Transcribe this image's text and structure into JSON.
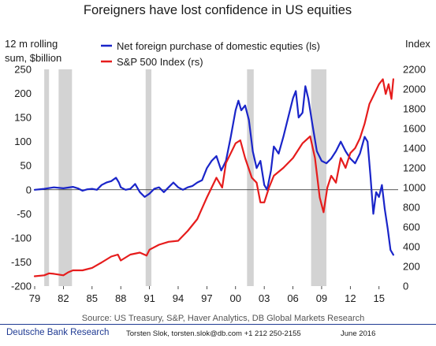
{
  "chart_data": {
    "type": "line",
    "title": "Foreigners have lost confidence in US equities",
    "ylabel_left": [
      "12 m rolling",
      "sum, $billion"
    ],
    "ylabel_right": "Index",
    "ylim_left": [
      -200,
      250
    ],
    "ylim_right": [
      0,
      2200
    ],
    "xlim": [
      1979,
      2017
    ],
    "x_ticks": [
      1979,
      1982,
      1985,
      1988,
      1991,
      1994,
      1997,
      2000,
      2003,
      2006,
      2009,
      2012,
      2015
    ],
    "x_tick_labels": [
      "79",
      "82",
      "85",
      "88",
      "91",
      "94",
      "97",
      "00",
      "03",
      "06",
      "09",
      "12",
      "15"
    ],
    "y_ticks_left": [
      -200,
      -150,
      -100,
      -50,
      0,
      50,
      100,
      150,
      200,
      250
    ],
    "y_ticks_right": [
      0,
      200,
      400,
      600,
      800,
      1000,
      1200,
      1400,
      1600,
      1800,
      2000,
      2200
    ],
    "legend_position": "top",
    "recessions": [
      [
        1980.0,
        1980.5
      ],
      [
        1981.5,
        1982.9
      ],
      [
        1990.6,
        1991.2
      ],
      [
        2001.2,
        2001.9
      ],
      [
        2007.9,
        2009.5
      ]
    ],
    "series": [
      {
        "name": "Net foreign purchase of domestic equties (ls)",
        "color": "#1a25c9",
        "axis": "left",
        "points": [
          [
            1979.0,
            0
          ],
          [
            1980.0,
            2
          ],
          [
            1981.0,
            5
          ],
          [
            1982.0,
            3
          ],
          [
            1983.0,
            6
          ],
          [
            1983.5,
            3
          ],
          [
            1984.0,
            -2
          ],
          [
            1984.5,
            1
          ],
          [
            1985.0,
            2
          ],
          [
            1985.5,
            0
          ],
          [
            1986.0,
            10
          ],
          [
            1986.5,
            15
          ],
          [
            1987.0,
            18
          ],
          [
            1987.5,
            25
          ],
          [
            1987.8,
            15
          ],
          [
            1988.0,
            5
          ],
          [
            1988.5,
            0
          ],
          [
            1989.0,
            2
          ],
          [
            1989.5,
            12
          ],
          [
            1990.0,
            -5
          ],
          [
            1990.5,
            -15
          ],
          [
            1991.0,
            -8
          ],
          [
            1991.5,
            2
          ],
          [
            1992.0,
            5
          ],
          [
            1992.5,
            -5
          ],
          [
            1993.0,
            5
          ],
          [
            1993.5,
            15
          ],
          [
            1994.0,
            5
          ],
          [
            1994.5,
            0
          ],
          [
            1995.0,
            5
          ],
          [
            1995.5,
            8
          ],
          [
            1996.0,
            15
          ],
          [
            1996.5,
            20
          ],
          [
            1997.0,
            45
          ],
          [
            1997.5,
            60
          ],
          [
            1998.0,
            70
          ],
          [
            1998.5,
            40
          ],
          [
            1999.0,
            60
          ],
          [
            1999.5,
            110
          ],
          [
            2000.0,
            165
          ],
          [
            2000.3,
            185
          ],
          [
            2000.6,
            165
          ],
          [
            2001.0,
            175
          ],
          [
            2001.4,
            145
          ],
          [
            2001.8,
            80
          ],
          [
            2002.2,
            45
          ],
          [
            2002.6,
            60
          ],
          [
            2003.0,
            10
          ],
          [
            2003.3,
            0
          ],
          [
            2003.7,
            40
          ],
          [
            2004.0,
            90
          ],
          [
            2004.5,
            75
          ],
          [
            2005.0,
            110
          ],
          [
            2005.5,
            150
          ],
          [
            2006.0,
            190
          ],
          [
            2006.3,
            205
          ],
          [
            2006.6,
            150
          ],
          [
            2007.0,
            160
          ],
          [
            2007.3,
            215
          ],
          [
            2007.6,
            190
          ],
          [
            2008.0,
            140
          ],
          [
            2008.5,
            80
          ],
          [
            2009.0,
            60
          ],
          [
            2009.5,
            55
          ],
          [
            2010.0,
            65
          ],
          [
            2010.5,
            80
          ],
          [
            2011.0,
            100
          ],
          [
            2011.5,
            80
          ],
          [
            2012.0,
            65
          ],
          [
            2012.5,
            55
          ],
          [
            2013.0,
            75
          ],
          [
            2013.5,
            110
          ],
          [
            2013.8,
            100
          ],
          [
            2014.1,
            30
          ],
          [
            2014.4,
            -50
          ],
          [
            2014.7,
            -5
          ],
          [
            2015.0,
            -15
          ],
          [
            2015.3,
            10
          ],
          [
            2015.6,
            -40
          ],
          [
            2015.9,
            -80
          ],
          [
            2016.2,
            -125
          ],
          [
            2016.5,
            -135
          ]
        ]
      },
      {
        "name": "S&P 500 Index (rs)",
        "color": "#e61c1c",
        "axis": "right",
        "points": [
          [
            1979.0,
            100
          ],
          [
            1980.0,
            110
          ],
          [
            1980.5,
            130
          ],
          [
            1981.0,
            125
          ],
          [
            1982.0,
            110
          ],
          [
            1982.5,
            140
          ],
          [
            1983.0,
            160
          ],
          [
            1984.0,
            160
          ],
          [
            1985.0,
            185
          ],
          [
            1986.0,
            240
          ],
          [
            1987.0,
            300
          ],
          [
            1987.7,
            320
          ],
          [
            1988.0,
            260
          ],
          [
            1989.0,
            320
          ],
          [
            1990.0,
            340
          ],
          [
            1990.7,
            310
          ],
          [
            1991.0,
            370
          ],
          [
            1992.0,
            420
          ],
          [
            1993.0,
            450
          ],
          [
            1994.0,
            460
          ],
          [
            1995.0,
            560
          ],
          [
            1996.0,
            680
          ],
          [
            1997.0,
            900
          ],
          [
            1998.0,
            1100
          ],
          [
            1998.6,
            1000
          ],
          [
            1999.0,
            1250
          ],
          [
            1999.5,
            1350
          ],
          [
            2000.0,
            1450
          ],
          [
            2000.5,
            1480
          ],
          [
            2001.0,
            1300
          ],
          [
            2001.7,
            1100
          ],
          [
            2002.2,
            1050
          ],
          [
            2002.6,
            850
          ],
          [
            2003.0,
            850
          ],
          [
            2003.5,
            1000
          ],
          [
            2004.0,
            1120
          ],
          [
            2005.0,
            1200
          ],
          [
            2006.0,
            1300
          ],
          [
            2007.0,
            1450
          ],
          [
            2007.8,
            1520
          ],
          [
            2008.3,
            1300
          ],
          [
            2008.8,
            900
          ],
          [
            2009.2,
            750
          ],
          [
            2009.6,
            1000
          ],
          [
            2010.0,
            1120
          ],
          [
            2010.5,
            1050
          ],
          [
            2011.0,
            1300
          ],
          [
            2011.5,
            1200
          ],
          [
            2012.0,
            1350
          ],
          [
            2012.5,
            1400
          ],
          [
            2013.0,
            1500
          ],
          [
            2013.5,
            1650
          ],
          [
            2014.0,
            1850
          ],
          [
            2014.5,
            1950
          ],
          [
            2015.0,
            2050
          ],
          [
            2015.4,
            2100
          ],
          [
            2015.7,
            1950
          ],
          [
            2016.0,
            2050
          ],
          [
            2016.3,
            1900
          ],
          [
            2016.5,
            2100
          ]
        ]
      }
    ],
    "source": "Source: US Treasury, S&P, Haver Analytics, DB Global Markets Research"
  },
  "footer": {
    "brand": "Deutsche Bank Research",
    "author": "Torsten Slok, torsten.slok@db.com +1 212 250-2155",
    "date": "June 2016"
  },
  "colors": {
    "footer_rule": "#1f3a93",
    "recession_band": "#d3d3d3"
  }
}
